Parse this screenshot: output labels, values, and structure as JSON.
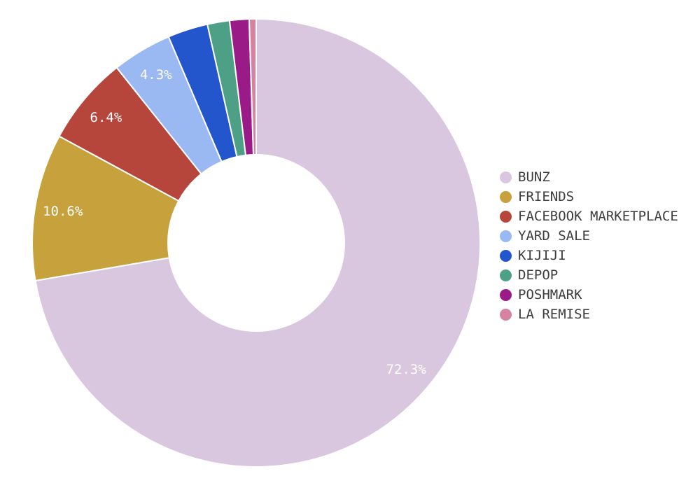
{
  "chart_data": {
    "type": "pie",
    "title": "",
    "hole_ratio": 0.394,
    "direction": "clockwise",
    "start_angle_deg": 0,
    "legend_position": "right",
    "grid": false,
    "background_color": "#ffffff",
    "slice_border_color": "#ffffff",
    "percent_label_color": "#ffffff",
    "legend_text_color": "#3d3d3d",
    "categories": [
      "BUNZ",
      "FRIENDS",
      "FACEBOOK MARKETPLACE",
      "YARD SALE",
      "KIJIJI",
      "DEPOP",
      "POSHMARK",
      "LA REMISE"
    ],
    "values": [
      72.3,
      10.6,
      6.4,
      4.3,
      2.9,
      1.6,
      1.4,
      0.5
    ],
    "labels": [
      "72.3%",
      "10.6%",
      "6.4%",
      "4.3%",
      "",
      "",
      "",
      ""
    ],
    "colors": [
      "#d9c7df",
      "#c7a13b",
      "#b6453c",
      "#9ab8f2",
      "#2355cd",
      "#4d9f85",
      "#9a1b87",
      "#d583a0"
    ]
  }
}
